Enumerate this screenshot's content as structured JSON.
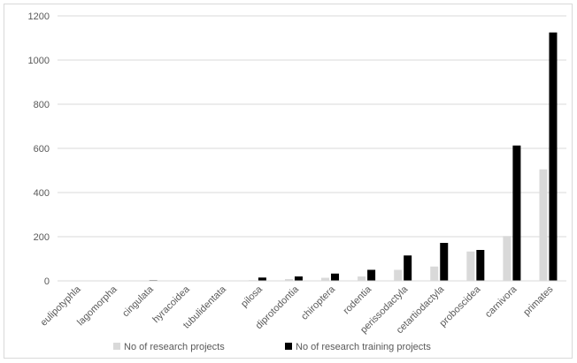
{
  "chart_data": {
    "type": "bar",
    "categories": [
      "eulipotyphla",
      "lagomorpha",
      "cingulata",
      "hyracoidea",
      "tubulidentata",
      "pilosa",
      "diprotodontia",
      "chiroptera",
      "rodentia",
      "perissodactyla",
      "cetartiodactyla",
      "proboscidea",
      "carnivora",
      "primates"
    ],
    "series": [
      {
        "name": "No of research projects",
        "color": "#d9d9d9",
        "values": [
          0,
          0,
          2,
          0,
          0,
          3,
          8,
          14,
          20,
          50,
          65,
          133,
          203,
          505
        ]
      },
      {
        "name": "No of research training projects",
        "color": "#000000",
        "values": [
          0,
          0,
          3,
          0,
          0,
          15,
          20,
          33,
          50,
          115,
          172,
          140,
          613,
          1125
        ]
      }
    ],
    "ylim": [
      0,
      1200
    ],
    "yticks": [
      0,
      200,
      400,
      600,
      800,
      1000,
      1200
    ],
    "grid": true,
    "legend": "bottom"
  }
}
